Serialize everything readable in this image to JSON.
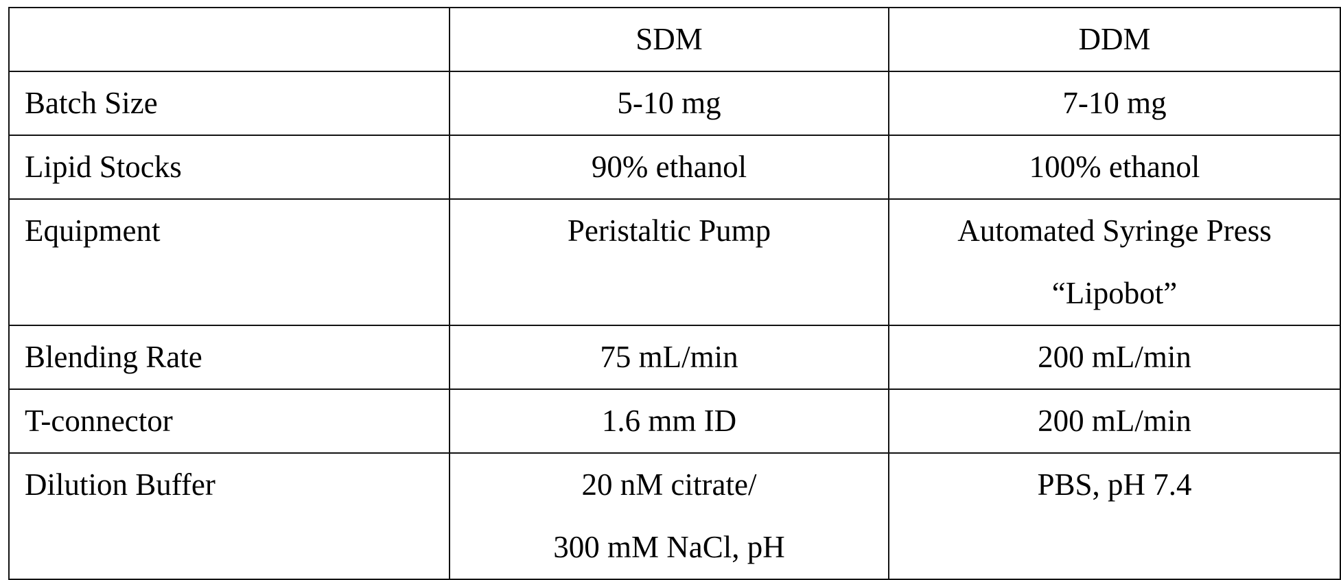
{
  "table": {
    "header": [
      "",
      "SDM",
      "DDM"
    ],
    "rows": [
      {
        "label": "Batch Size",
        "sdm": [
          "5-10 mg"
        ],
        "ddm": [
          "7-10 mg"
        ]
      },
      {
        "label": "Lipid Stocks",
        "sdm": [
          "90% ethanol"
        ],
        "ddm": [
          "100% ethanol"
        ]
      },
      {
        "label": "Equipment",
        "sdm": [
          "Peristaltic Pump"
        ],
        "ddm": [
          "Automated Syringe Press",
          "“Lipobot”"
        ]
      },
      {
        "label": "Blending Rate",
        "sdm": [
          "75 mL/min"
        ],
        "ddm": [
          "200 mL/min"
        ]
      },
      {
        "label": "T-connector",
        "sdm": [
          "1.6 mm ID"
        ],
        "ddm": [
          "200 mL/min"
        ]
      },
      {
        "label": "Dilution Buffer",
        "sdm": [
          "20 nM citrate/",
          "300 mM NaCl, pH"
        ],
        "ddm": [
          "PBS, pH 7.4"
        ]
      }
    ]
  }
}
